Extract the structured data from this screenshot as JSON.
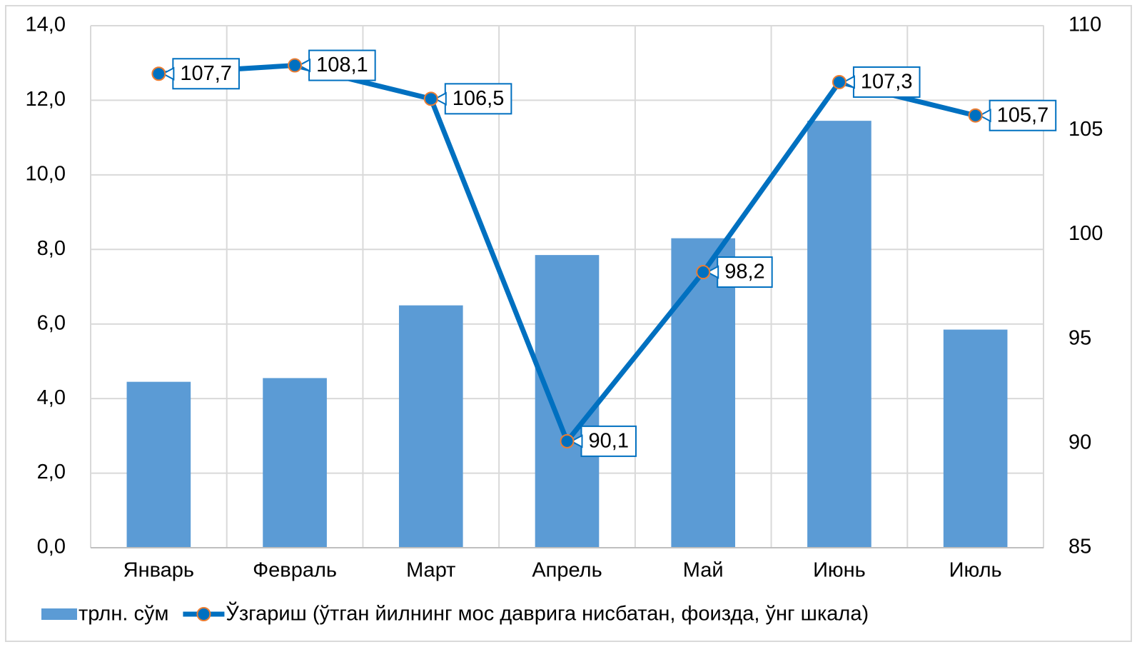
{
  "chart_data": {
    "type": "bar_line",
    "categories": [
      "Январь",
      "Февраль",
      "Март",
      "Апрель",
      "Май",
      "Июнь",
      "Июль"
    ],
    "series": [
      {
        "name": "трлн. сўм",
        "type": "bar",
        "color": "#5b9bd5",
        "values": [
          4.45,
          4.55,
          6.5,
          7.85,
          8.3,
          11.45,
          5.85
        ]
      },
      {
        "name": "Ўзгариш (ўтган йилнинг мос даврига нисбатан, фоизда, ўнг шкала)",
        "type": "line",
        "axis": "y2",
        "color": "#0070c0",
        "marker_edge": "#ed7d31",
        "values": [
          107.7,
          108.1,
          106.5,
          90.1,
          98.2,
          107.3,
          105.7
        ],
        "value_labels": [
          "107,7",
          "108,1",
          "106,5",
          "90,1",
          "98,2",
          "107,3",
          "105,7"
        ]
      }
    ],
    "ylim": [
      0,
      14
    ],
    "yticks": [
      {
        "value": 0,
        "label": "0,0"
      },
      {
        "value": 2,
        "label": "2,0"
      },
      {
        "value": 4,
        "label": "4,0"
      },
      {
        "value": 6,
        "label": "6,0"
      },
      {
        "value": 8,
        "label": "8,0"
      },
      {
        "value": 10,
        "label": "10,0"
      },
      {
        "value": 12,
        "label": "12,0"
      },
      {
        "value": 14,
        "label": "14,0"
      }
    ],
    "y2lim": [
      85,
      110
    ],
    "y2ticks": [
      85,
      90,
      95,
      100,
      105,
      110
    ],
    "grid": true,
    "legend": "bottom"
  }
}
